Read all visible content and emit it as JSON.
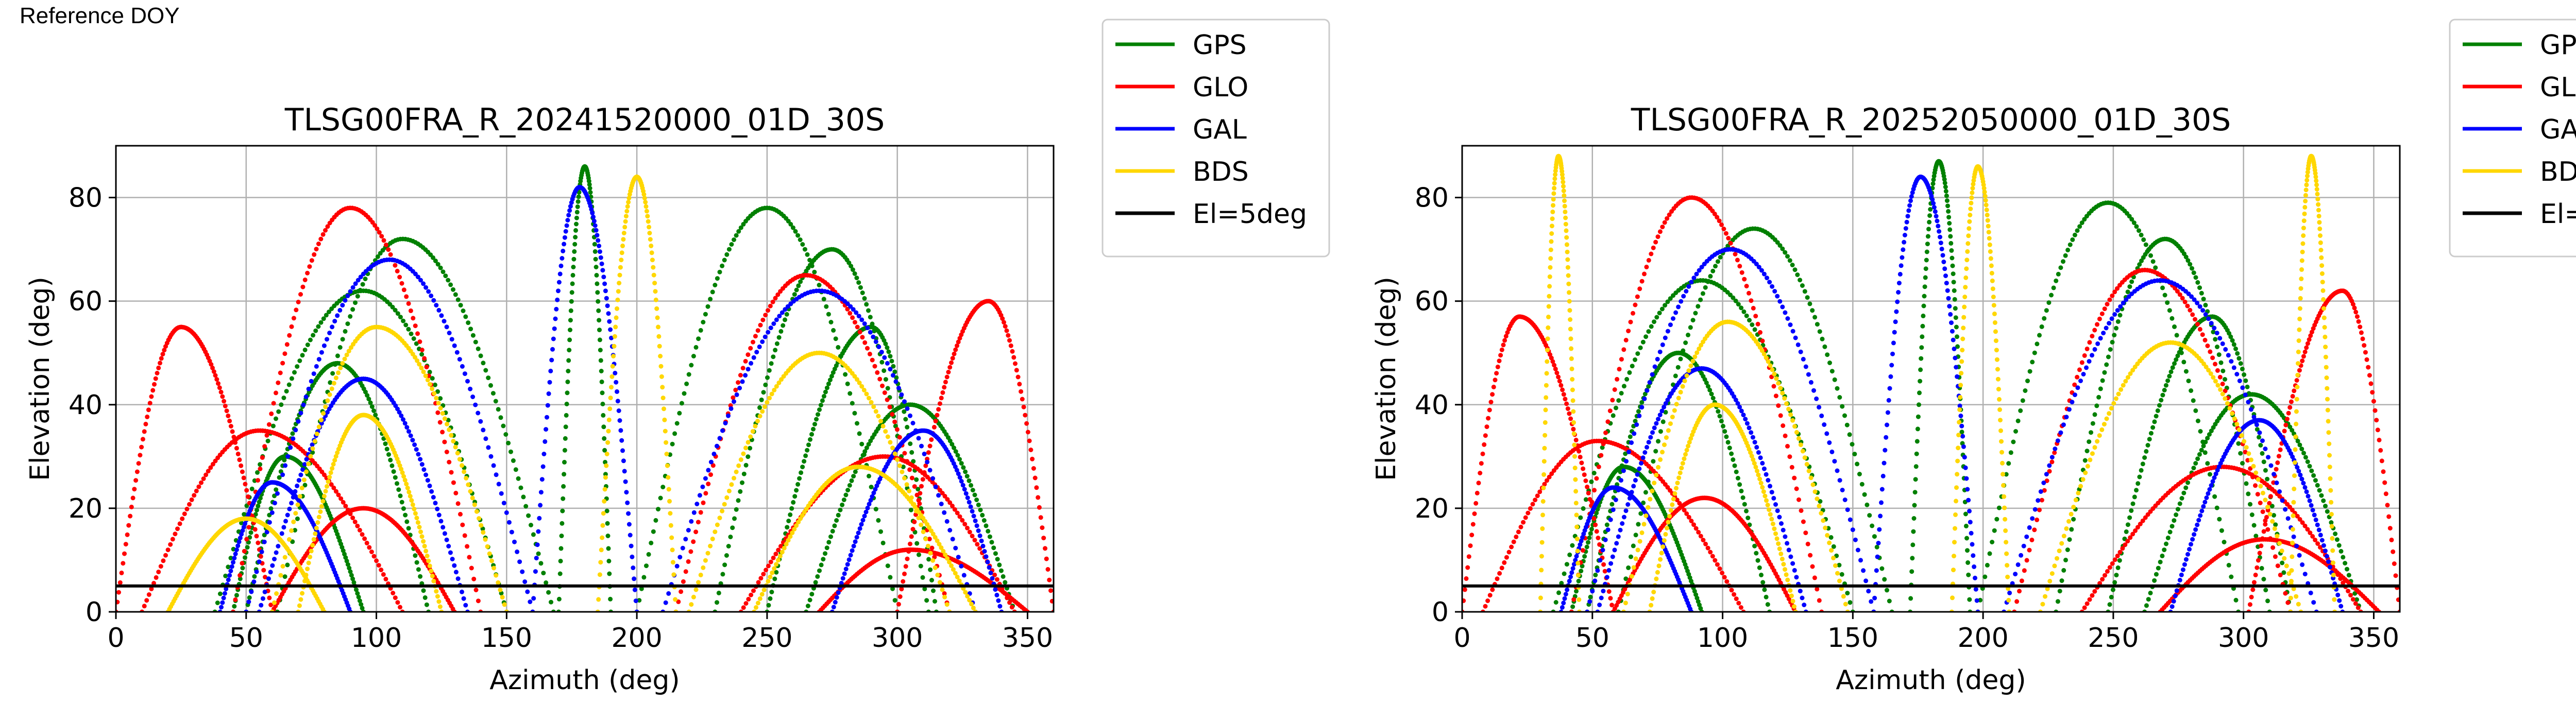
{
  "figure": {
    "corner_label": "Reference DOY",
    "legend": [
      {
        "name": "GPS",
        "color": "#008000"
      },
      {
        "name": "GLO",
        "color": "#ff0000"
      },
      {
        "name": "GAL",
        "color": "#0000ff"
      },
      {
        "name": "BDS",
        "color": "#ffd700"
      },
      {
        "name": "El=5deg",
        "color": "#000000"
      }
    ]
  },
  "chart_data": [
    {
      "type": "scatter",
      "title": "TLSG00FRA_R_20241520000_01D_30S",
      "xlabel": "Azimuth (deg)",
      "ylabel": "Elevation (deg)",
      "xlim": [
        0,
        360
      ],
      "ylim": [
        0,
        90
      ],
      "xticks": [
        0,
        50,
        100,
        150,
        200,
        250,
        300,
        350
      ],
      "yticks": [
        0,
        20,
        40,
        60,
        80
      ],
      "grid": true,
      "legend_position": "outside-right-top",
      "reference_line": {
        "name": "El=5deg",
        "y": 5
      },
      "series": [
        {
          "name": "GPS",
          "tracks": [
            {
              "az0": 38,
              "az1": 150,
              "peak_az": 95,
              "peak_el": 62
            },
            {
              "az0": 50,
              "az1": 120,
              "peak_az": 85,
              "peak_el": 48
            },
            {
              "az0": 62,
              "az1": 168,
              "peak_az": 110,
              "peak_el": 72
            },
            {
              "az0": 170,
              "az1": 190,
              "peak_az": 180,
              "peak_el": 86
            },
            {
              "az0": 230,
              "az1": 312,
              "peak_az": 275,
              "peak_el": 70
            },
            {
              "az0": 250,
              "az1": 315,
              "peak_az": 290,
              "peak_el": 55
            },
            {
              "az0": 265,
              "az1": 345,
              "peak_az": 305,
              "peak_el": 40
            },
            {
              "az0": 200,
              "az1": 300,
              "peak_az": 250,
              "peak_el": 78
            },
            {
              "az0": 45,
              "az1": 95,
              "peak_az": 65,
              "peak_el": 30
            }
          ]
        },
        {
          "name": "GLO",
          "tracks": [
            {
              "az0": 0,
              "az1": 60,
              "peak_az": 25,
              "peak_el": 55
            },
            {
              "az0": 10,
              "az1": 110,
              "peak_az": 55,
              "peak_el": 35
            },
            {
              "az0": 300,
              "az1": 360,
              "peak_az": 335,
              "peak_el": 60
            },
            {
              "az0": 240,
              "az1": 345,
              "peak_az": 295,
              "peak_el": 30
            },
            {
              "az0": 45,
              "az1": 140,
              "peak_az": 90,
              "peak_el": 78
            },
            {
              "az0": 215,
              "az1": 320,
              "peak_az": 265,
              "peak_el": 65
            },
            {
              "az0": 60,
              "az1": 130,
              "peak_az": 95,
              "peak_el": 20
            },
            {
              "az0": 270,
              "az1": 350,
              "peak_az": 305,
              "peak_el": 12
            }
          ]
        },
        {
          "name": "GAL",
          "tracks": [
            {
              "az0": 50,
              "az1": 160,
              "peak_az": 105,
              "peak_el": 68
            },
            {
              "az0": 55,
              "az1": 135,
              "peak_az": 95,
              "peak_el": 45
            },
            {
              "az0": 160,
              "az1": 200,
              "peak_az": 178,
              "peak_el": 82
            },
            {
              "az0": 210,
              "az1": 330,
              "peak_az": 270,
              "peak_el": 62
            },
            {
              "az0": 275,
              "az1": 340,
              "peak_az": 310,
              "peak_el": 35
            },
            {
              "az0": 40,
              "az1": 90,
              "peak_az": 60,
              "peak_el": 25
            }
          ]
        },
        {
          "name": "BDS",
          "tracks": [
            {
              "az0": 60,
              "az1": 150,
              "peak_az": 100,
              "peak_el": 55
            },
            {
              "az0": 70,
              "az1": 125,
              "peak_az": 95,
              "peak_el": 38
            },
            {
              "az0": 185,
              "az1": 215,
              "peak_az": 200,
              "peak_el": 84
            },
            {
              "az0": 220,
              "az1": 320,
              "peak_az": 270,
              "peak_el": 50
            },
            {
              "az0": 245,
              "az1": 330,
              "peak_az": 285,
              "peak_el": 28
            },
            {
              "az0": 20,
              "az1": 80,
              "peak_az": 50,
              "peak_el": 18
            }
          ]
        }
      ]
    },
    {
      "type": "scatter",
      "title": "TLSG00FRA_R_20252050000_01D_30S",
      "xlabel": "Azimuth (deg)",
      "ylabel": "Elevation (deg)",
      "xlim": [
        0,
        360
      ],
      "ylim": [
        0,
        90
      ],
      "xticks": [
        0,
        50,
        100,
        150,
        200,
        250,
        300,
        350
      ],
      "yticks": [
        0,
        20,
        40,
        60,
        80
      ],
      "grid": true,
      "legend_position": "outside-right-top",
      "reference_line": {
        "name": "El=5deg",
        "y": 5
      },
      "series": [
        {
          "name": "GPS",
          "tracks": [
            {
              "az0": 35,
              "az1": 150,
              "peak_az": 92,
              "peak_el": 64
            },
            {
              "az0": 48,
              "az1": 118,
              "peak_az": 83,
              "peak_el": 50
            },
            {
              "az0": 60,
              "az1": 165,
              "peak_az": 112,
              "peak_el": 74
            },
            {
              "az0": 172,
              "az1": 195,
              "peak_az": 183,
              "peak_el": 87
            },
            {
              "az0": 228,
              "az1": 310,
              "peak_az": 270,
              "peak_el": 72
            },
            {
              "az0": 248,
              "az1": 318,
              "peak_az": 288,
              "peak_el": 57
            },
            {
              "az0": 262,
              "az1": 345,
              "peak_az": 303,
              "peak_el": 42
            },
            {
              "az0": 198,
              "az1": 298,
              "peak_az": 248,
              "peak_el": 79
            },
            {
              "az0": 42,
              "az1": 92,
              "peak_az": 62,
              "peak_el": 28
            }
          ]
        },
        {
          "name": "GLO",
          "tracks": [
            {
              "az0": 0,
              "az1": 58,
              "peak_az": 22,
              "peak_el": 57
            },
            {
              "az0": 8,
              "az1": 108,
              "peak_az": 52,
              "peak_el": 33
            },
            {
              "az0": 302,
              "az1": 360,
              "peak_az": 338,
              "peak_el": 62
            },
            {
              "az0": 238,
              "az1": 345,
              "peak_az": 292,
              "peak_el": 28
            },
            {
              "az0": 42,
              "az1": 138,
              "peak_az": 88,
              "peak_el": 80
            },
            {
              "az0": 212,
              "az1": 318,
              "peak_az": 262,
              "peak_el": 66
            },
            {
              "az0": 58,
              "az1": 128,
              "peak_az": 93,
              "peak_el": 22
            },
            {
              "az0": 268,
              "az1": 352,
              "peak_az": 308,
              "peak_el": 14
            }
          ]
        },
        {
          "name": "GAL",
          "tracks": [
            {
              "az0": 48,
              "az1": 158,
              "peak_az": 103,
              "peak_el": 70
            },
            {
              "az0": 52,
              "az1": 132,
              "peak_az": 92,
              "peak_el": 47
            },
            {
              "az0": 158,
              "az1": 198,
              "peak_az": 176,
              "peak_el": 84
            },
            {
              "az0": 208,
              "az1": 328,
              "peak_az": 268,
              "peak_el": 64
            },
            {
              "az0": 272,
              "az1": 338,
              "peak_az": 306,
              "peak_el": 37
            },
            {
              "az0": 38,
              "az1": 88,
              "peak_az": 58,
              "peak_el": 24
            }
          ]
        },
        {
          "name": "BDS",
          "tracks": [
            {
              "az0": 30,
              "az1": 45,
              "peak_az": 37,
              "peak_el": 88
            },
            {
              "az0": 62,
              "az1": 148,
              "peak_az": 102,
              "peak_el": 56
            },
            {
              "az0": 72,
              "az1": 128,
              "peak_az": 97,
              "peak_el": 40
            },
            {
              "az0": 188,
              "az1": 210,
              "peak_az": 198,
              "peak_el": 86
            },
            {
              "az0": 222,
              "az1": 322,
              "peak_az": 272,
              "peak_el": 52
            },
            {
              "az0": 318,
              "az1": 335,
              "peak_az": 326,
              "peak_el": 88
            }
          ]
        }
      ]
    }
  ]
}
